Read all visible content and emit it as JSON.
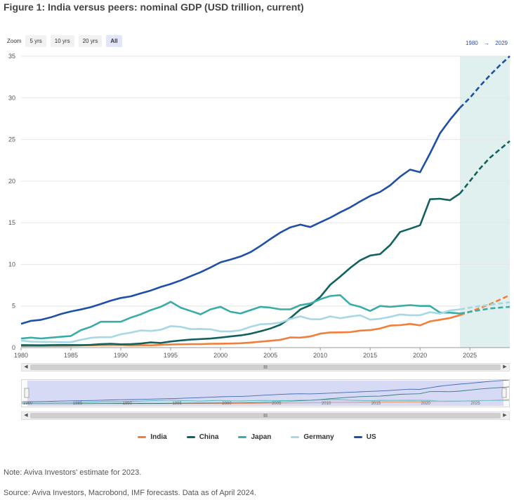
{
  "title": "Figure 1: India versus peers: nominal GDP (USD trillion, current)",
  "zoom": {
    "label": "Zoom",
    "buttons": [
      "5 yrs",
      "10 yrs",
      "20 yrs",
      "All"
    ],
    "active": "All"
  },
  "range": {
    "from": "1980",
    "arrow": "→",
    "to": "2029"
  },
  "scrollbar": {
    "thumb_label": "III"
  },
  "navigator": {
    "ticks": [
      "1980",
      "1985",
      "1990",
      "1995",
      "2000",
      "2005",
      "2010",
      "2015",
      "2020",
      "2025"
    ]
  },
  "note": "Note: Aviva Investors' estimate for 2023.",
  "source": "Source: Aviva Investors, Macrobond, IMF forecasts. Data as of April 2024.",
  "chart_data": {
    "type": "line",
    "title": "Figure 1: India versus peers: nominal GDP (USD trillion, current)",
    "xlabel": "",
    "ylabel": "",
    "xlim": [
      1980,
      2029
    ],
    "ylim": [
      0,
      35
    ],
    "yticks": [
      0,
      5,
      10,
      15,
      20,
      25,
      30,
      35
    ],
    "xticks": [
      1980,
      1985,
      1990,
      1995,
      2000,
      2005,
      2010,
      2015,
      2020,
      2025
    ],
    "forecast_start": 2024,
    "forecast_shading_color": "#dff0ef",
    "legend_position": "bottom",
    "grid": true,
    "x": [
      1980,
      1981,
      1982,
      1983,
      1984,
      1985,
      1986,
      1987,
      1988,
      1989,
      1990,
      1991,
      1992,
      1993,
      1994,
      1995,
      1996,
      1997,
      1998,
      1999,
      2000,
      2001,
      2002,
      2003,
      2004,
      2005,
      2006,
      2007,
      2008,
      2009,
      2010,
      2011,
      2012,
      2013,
      2014,
      2015,
      2016,
      2017,
      2018,
      2019,
      2020,
      2021,
      2022,
      2023,
      2024,
      2025,
      2026,
      2027,
      2028,
      2029
    ],
    "series": [
      {
        "name": "India",
        "color": "#f07f3c",
        "values": [
          0.19,
          0.2,
          0.2,
          0.22,
          0.21,
          0.23,
          0.25,
          0.28,
          0.3,
          0.3,
          0.32,
          0.27,
          0.29,
          0.28,
          0.33,
          0.37,
          0.4,
          0.42,
          0.42,
          0.46,
          0.47,
          0.49,
          0.52,
          0.61,
          0.71,
          0.82,
          0.94,
          1.22,
          1.2,
          1.34,
          1.68,
          1.82,
          1.83,
          1.86,
          2.04,
          2.1,
          2.29,
          2.65,
          2.7,
          2.84,
          2.67,
          3.15,
          3.35,
          3.55,
          3.9,
          4.3,
          4.75,
          5.2,
          5.75,
          6.3
        ]
      },
      {
        "name": "China",
        "color": "#11625f",
        "values": [
          0.3,
          0.29,
          0.28,
          0.3,
          0.31,
          0.31,
          0.3,
          0.33,
          0.41,
          0.46,
          0.4,
          0.41,
          0.49,
          0.62,
          0.56,
          0.73,
          0.86,
          0.96,
          1.03,
          1.09,
          1.21,
          1.34,
          1.47,
          1.66,
          1.96,
          2.29,
          2.75,
          3.55,
          4.59,
          5.1,
          6.09,
          7.55,
          8.53,
          9.57,
          10.48,
          11.06,
          11.23,
          12.31,
          13.89,
          14.28,
          14.69,
          17.82,
          17.88,
          17.7,
          18.5,
          20.0,
          21.5,
          22.8,
          23.8,
          24.8
        ]
      },
      {
        "name": "Japan",
        "color": "#3aaca8",
        "values": [
          1.1,
          1.2,
          1.1,
          1.2,
          1.3,
          1.4,
          2.1,
          2.5,
          3.1,
          3.1,
          3.1,
          3.6,
          4.0,
          4.5,
          4.9,
          5.5,
          4.8,
          4.4,
          4.0,
          4.6,
          4.9,
          4.3,
          4.1,
          4.5,
          4.9,
          4.8,
          4.6,
          4.6,
          5.1,
          5.3,
          5.8,
          6.2,
          6.3,
          5.2,
          4.9,
          4.4,
          5.0,
          4.9,
          5.0,
          5.1,
          5.0,
          5.0,
          4.2,
          4.2,
          4.1,
          4.3,
          4.5,
          4.7,
          4.8,
          4.9
        ]
      },
      {
        "name": "Germany",
        "color": "#a7d8e4",
        "values": [
          0.85,
          0.72,
          0.69,
          0.68,
          0.65,
          0.66,
          0.94,
          1.17,
          1.26,
          1.25,
          1.6,
          1.8,
          2.07,
          2.0,
          2.14,
          2.58,
          2.5,
          2.22,
          2.24,
          2.2,
          1.95,
          1.95,
          2.08,
          2.5,
          2.81,
          2.85,
          3.0,
          3.44,
          3.75,
          3.42,
          3.4,
          3.75,
          3.53,
          3.73,
          3.89,
          3.36,
          3.47,
          3.69,
          3.98,
          3.89,
          3.89,
          4.26,
          4.08,
          4.46,
          4.6,
          4.8,
          5.0,
          5.15,
          5.3,
          5.45
        ]
      },
      {
        "name": "US",
        "color": "#1f4fa8",
        "values": [
          2.86,
          3.21,
          3.34,
          3.64,
          4.04,
          4.34,
          4.58,
          4.86,
          5.24,
          5.64,
          5.96,
          6.16,
          6.52,
          6.86,
          7.29,
          7.64,
          8.07,
          8.58,
          9.06,
          9.63,
          10.25,
          10.58,
          10.94,
          11.46,
          12.21,
          13.04,
          13.82,
          14.45,
          14.77,
          14.48,
          15.05,
          15.6,
          16.25,
          16.84,
          17.55,
          18.21,
          18.7,
          19.48,
          20.53,
          21.38,
          21.06,
          23.32,
          25.74,
          27.36,
          28.8,
          30.0,
          31.4,
          32.7,
          33.9,
          35.0
        ]
      }
    ]
  }
}
